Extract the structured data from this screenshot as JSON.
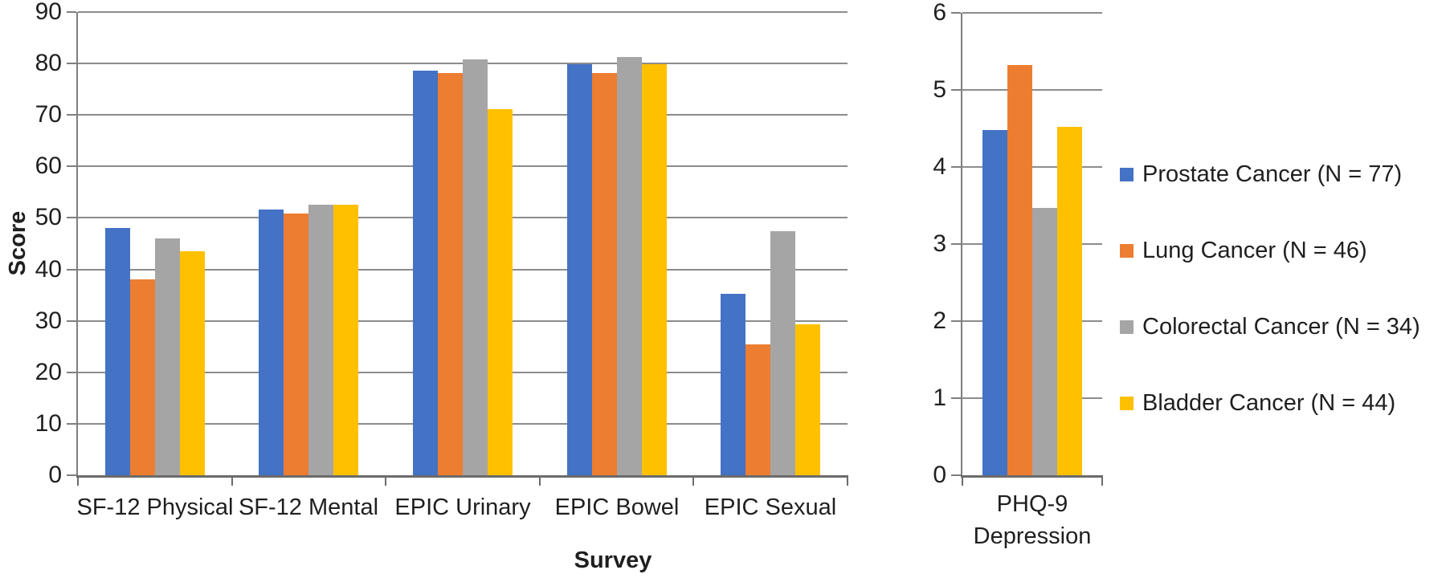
{
  "colors": {
    "prostate": "#4472C4",
    "lung": "#ED7D31",
    "colorectal": "#A5A5A5",
    "bladder": "#FFC000",
    "gridline": "#8C8C8C",
    "value_axis": "#7F7F7F",
    "category_axis": "#6B6B6B",
    "text": "#1F1F1F",
    "background": "#FFFFFF"
  },
  "legend": {
    "items": [
      {
        "key": "prostate",
        "label": "Prostate Cancer (N = 77)",
        "color": "#4472C4"
      },
      {
        "key": "lung",
        "label": "Lung Cancer (N = 46)",
        "color": "#ED7D31"
      },
      {
        "key": "colorectal",
        "label": "Colorectal Cancer (N = 34)",
        "color": "#A5A5A5"
      },
      {
        "key": "bladder",
        "label": "Bladder Cancer (N = 44)",
        "color": "#FFC000"
      }
    ],
    "position": "right"
  },
  "chart_data": [
    {
      "type": "bar",
      "title": "",
      "xlabel": "Survey",
      "ylabel": "Score",
      "categories": [
        "SF-12 Physical",
        "SF-12 Mental",
        "EPIC Urinary",
        "EPIC Bowel",
        "EPIC Sexual"
      ],
      "category_keys": [
        "sf12-physical",
        "sf12-mental",
        "epic-urinary",
        "epic-bowel",
        "epic-sexual"
      ],
      "series": [
        {
          "key": "prostate",
          "name": "Prostate Cancer (N = 77)",
          "color": "#4472C4",
          "values": [
            48.1,
            51.6,
            78.6,
            79.9,
            35.3
          ]
        },
        {
          "key": "lung",
          "name": "Lung Cancer (N = 46)",
          "color": "#ED7D31",
          "values": [
            38.1,
            50.8,
            78.2,
            78.2,
            25.4
          ]
        },
        {
          "key": "colorectal",
          "name": "Colorectal Cancer (N = 34)",
          "color": "#A5A5A5",
          "values": [
            46.0,
            52.6,
            80.8,
            81.2,
            47.4
          ]
        },
        {
          "key": "bladder",
          "name": "Bladder Cancer (N = 44)",
          "color": "#FFC000",
          "values": [
            43.5,
            52.6,
            71.2,
            79.9,
            29.4
          ]
        }
      ],
      "ylim": [
        0,
        90
      ],
      "ytick_step": 10,
      "grid": true,
      "legend_position": "shared-right"
    },
    {
      "type": "bar",
      "title": "",
      "xlabel": "",
      "ylabel": "",
      "categories": [
        "PHQ-9 Depression"
      ],
      "category_keys": [
        "phq9-depression"
      ],
      "series": [
        {
          "key": "prostate",
          "name": "Prostate Cancer (N = 77)",
          "color": "#4472C4",
          "values": [
            4.48
          ]
        },
        {
          "key": "lung",
          "name": "Lung Cancer (N = 46)",
          "color": "#ED7D31",
          "values": [
            5.32
          ]
        },
        {
          "key": "colorectal",
          "name": "Colorectal Cancer (N = 34)",
          "color": "#A5A5A5",
          "values": [
            3.47
          ]
        },
        {
          "key": "bladder",
          "name": "Bladder Cancer (N = 44)",
          "color": "#FFC000",
          "values": [
            4.52
          ]
        }
      ],
      "ylim": [
        0,
        6
      ],
      "ytick_step": 1,
      "grid": true,
      "legend_position": "shared-right"
    }
  ]
}
